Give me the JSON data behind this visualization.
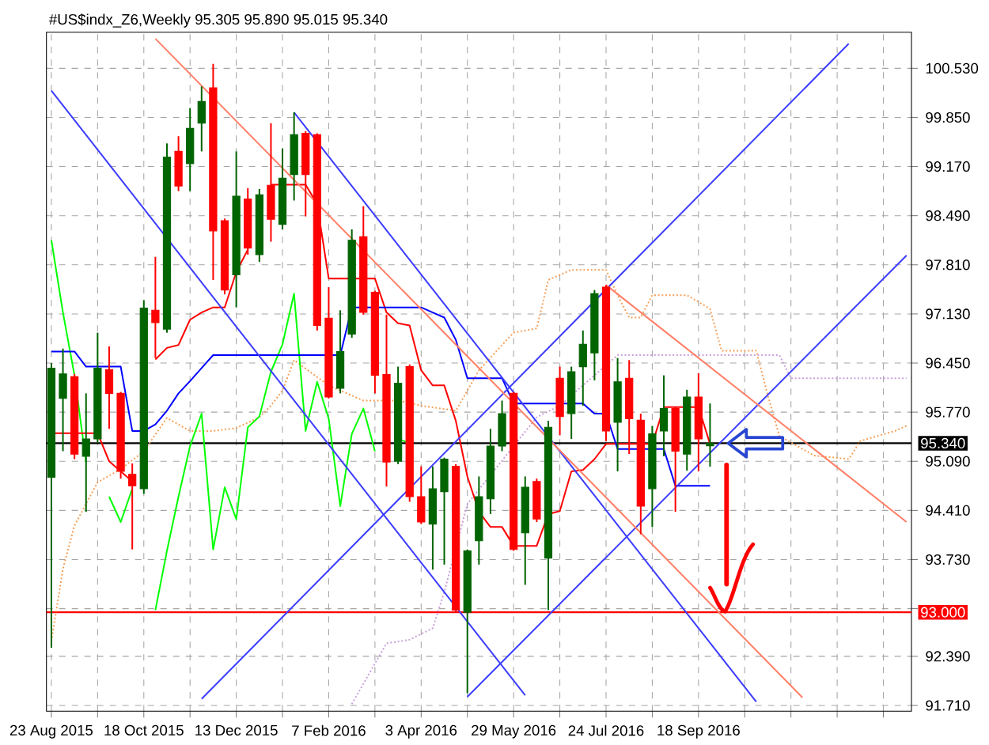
{
  "chart_data": {
    "type": "candlestick",
    "title": "#US$indx_Z6,Weekly  95.305 95.890 95.015 95.340",
    "x": [
      "2015-08-23",
      "2015-08-30",
      "2015-09-06",
      "2015-09-13",
      "2015-09-20",
      "2015-09-27",
      "2015-10-04",
      "2015-10-11",
      "2015-10-18",
      "2015-10-25",
      "2015-11-01",
      "2015-11-08",
      "2015-11-15",
      "2015-11-22",
      "2015-11-29",
      "2015-12-06",
      "2015-12-13",
      "2015-12-20",
      "2015-12-27",
      "2016-01-03",
      "2016-01-10",
      "2016-01-17",
      "2016-01-24",
      "2016-01-31",
      "2016-02-07",
      "2016-02-14",
      "2016-02-21",
      "2016-02-28",
      "2016-03-06",
      "2016-03-13",
      "2016-03-20",
      "2016-03-27",
      "2016-04-03",
      "2016-04-10",
      "2016-04-17",
      "2016-04-24",
      "2016-05-01",
      "2016-05-08",
      "2016-05-15",
      "2016-05-22",
      "2016-05-29",
      "2016-06-05",
      "2016-06-12",
      "2016-06-19",
      "2016-06-26",
      "2016-07-03",
      "2016-07-10",
      "2016-07-17",
      "2016-07-24",
      "2016-07-31",
      "2016-08-07",
      "2016-08-14",
      "2016-08-21",
      "2016-08-28",
      "2016-09-04",
      "2016-09-11",
      "2016-09-18",
      "2016-09-25"
    ],
    "ohlc": [
      [
        94.87,
        96.45,
        92.51,
        96.38
      ],
      [
        95.96,
        96.65,
        95.23,
        96.3
      ],
      [
        96.26,
        96.3,
        95.12,
        95.19
      ],
      [
        95.16,
        96.03,
        94.39,
        95.4
      ],
      [
        95.4,
        96.87,
        95.35,
        96.38
      ],
      [
        96.36,
        96.68,
        95.54,
        96.03
      ],
      [
        96.03,
        96.05,
        94.85,
        94.95
      ],
      [
        94.91,
        95.06,
        93.87,
        94.75
      ],
      [
        94.71,
        97.32,
        94.64,
        97.21
      ],
      [
        97.18,
        97.92,
        96.52,
        97.01
      ],
      [
        96.92,
        99.49,
        96.87,
        99.3
      ],
      [
        99.38,
        99.59,
        98.83,
        98.9
      ],
      [
        99.21,
        99.98,
        98.83,
        99.7
      ],
      [
        99.77,
        100.28,
        99.38,
        100.07
      ],
      [
        100.26,
        100.59,
        97.6,
        98.28
      ],
      [
        98.42,
        98.45,
        97.4,
        97.46
      ],
      [
        97.67,
        99.38,
        97.22,
        98.76
      ],
      [
        98.72,
        98.87,
        97.95,
        98.04
      ],
      [
        97.95,
        98.86,
        97.85,
        98.78
      ],
      [
        98.91,
        99.77,
        98.13,
        98.44
      ],
      [
        98.37,
        99.42,
        98.3,
        99.01
      ],
      [
        99.06,
        99.92,
        98.7,
        99.61
      ],
      [
        99.63,
        99.66,
        98.48,
        99.06
      ],
      [
        99.61,
        99.63,
        96.9,
        96.97
      ],
      [
        97.07,
        97.5,
        95.96,
        95.98
      ],
      [
        96.1,
        97.18,
        96.03,
        96.61
      ],
      [
        96.85,
        98.3,
        96.8,
        98.15
      ],
      [
        98.2,
        98.62,
        97.12,
        97.15
      ],
      [
        97.43,
        97.45,
        96.03,
        96.28
      ],
      [
        96.29,
        97.12,
        94.74,
        95.08
      ],
      [
        95.09,
        96.4,
        95.05,
        96.17
      ],
      [
        96.4,
        96.43,
        94.53,
        94.6
      ],
      [
        94.6,
        95.02,
        94.22,
        94.25
      ],
      [
        94.22,
        95.02,
        93.59,
        94.71
      ],
      [
        94.67,
        95.14,
        93.66,
        95.12
      ],
      [
        95.02,
        95.05,
        93.0,
        93.03
      ],
      [
        93.0,
        93.87,
        91.88,
        93.85
      ],
      [
        93.99,
        94.88,
        93.66,
        94.6
      ],
      [
        94.57,
        95.54,
        94.36,
        95.3
      ],
      [
        95.3,
        95.93,
        95.23,
        95.75
      ],
      [
        96.03,
        96.05,
        93.85,
        93.87
      ],
      [
        94.1,
        94.88,
        93.38,
        94.73
      ],
      [
        94.81,
        94.85,
        94.25,
        94.29
      ],
      [
        93.75,
        95.65,
        93.03,
        95.56
      ],
      [
        96.24,
        96.4,
        95.45,
        95.71
      ],
      [
        95.75,
        96.4,
        95.4,
        96.33
      ],
      [
        96.4,
        96.9,
        95.86,
        96.71
      ],
      [
        96.59,
        97.46,
        96.21,
        97.41
      ],
      [
        97.5,
        97.53,
        95.37,
        95.51
      ],
      [
        95.63,
        96.52,
        94.95,
        96.19
      ],
      [
        96.24,
        96.49,
        95.19,
        95.68
      ],
      [
        95.66,
        95.75,
        94.08,
        94.47
      ],
      [
        94.71,
        95.58,
        94.18,
        95.47
      ],
      [
        95.51,
        96.28,
        95.16,
        95.82
      ],
      [
        95.82,
        95.84,
        94.39,
        95.23
      ],
      [
        95.19,
        96.08,
        94.96,
        95.98
      ],
      [
        95.98,
        96.31,
        94.95,
        95.4
      ],
      [
        95.305,
        95.89,
        95.015,
        95.34
      ]
    ],
    "colors": [
      "#006400",
      "#006400",
      "#ff0000",
      "#006400",
      "#006400",
      "#ff0000",
      "#ff0000",
      "#ff0000",
      "#006400",
      "#ff0000",
      "#006400",
      "#ff0000",
      "#006400",
      "#006400",
      "#ff0000",
      "#ff0000",
      "#006400",
      "#ff0000",
      "#006400",
      "#ff0000",
      "#006400",
      "#006400",
      "#ff0000",
      "#ff0000",
      "#ff0000",
      "#006400",
      "#006400",
      "#ff0000",
      "#ff0000",
      "#ff0000",
      "#006400",
      "#ff0000",
      "#ff0000",
      "#006400",
      "#006400",
      "#ff0000",
      "#006400",
      "#006400",
      "#006400",
      "#006400",
      "#ff0000",
      "#006400",
      "#ff0000",
      "#006400",
      "#ff0000",
      "#006400",
      "#006400",
      "#006400",
      "#ff0000",
      "#006400",
      "#ff0000",
      "#ff0000",
      "#006400",
      "#006400",
      "#ff0000",
      "#006400",
      "#ff0000",
      "#006400"
    ],
    "series": [
      {
        "type": "line",
        "color": "#f5a05a",
        "line_style": "dotted",
        "x": [
          "2015-08-23",
          "2015-08-30",
          "2015-09-06",
          "2015-09-13",
          "2015-09-20",
          "2015-10-04",
          "2015-10-18",
          "2015-11-01",
          "2015-11-15",
          "2015-11-29",
          "2015-12-13",
          "2015-12-27",
          "2016-01-03",
          "2016-01-10",
          "2016-01-17",
          "2016-02-07",
          "2016-02-28",
          "2016-03-20",
          "2016-04-03",
          "2016-04-24",
          "2016-05-08",
          "2016-05-22",
          "2016-05-29",
          "2016-06-12",
          "2016-06-19",
          "2016-07-03",
          "2016-07-24",
          "2016-07-31",
          "2016-08-07",
          "2016-08-14",
          "2016-08-21",
          "2016-09-11",
          "2016-09-25",
          "2016-10-02",
          "2016-10-23",
          "2016-10-30",
          "2016-11-06",
          "2016-11-27",
          "2016-12-18",
          "2016-12-25",
          "2017-01-15",
          "2017-01-22"
        ],
        "values": [
          92.6,
          93.6,
          94.2,
          94.5,
          94.8,
          94.98,
          95.23,
          95.69,
          95.51,
          95.51,
          95.55,
          95.7,
          95.86,
          96.07,
          96.49,
          96.14,
          95.93,
          95.93,
          95.86,
          95.79,
          96.35,
          96.7,
          96.87,
          96.93,
          97.6,
          97.74,
          97.74,
          97.39,
          97.08,
          97.08,
          97.39,
          97.39,
          97.2,
          96.62,
          96.62,
          96.0,
          95.44,
          95.17,
          95.12,
          95.37,
          95.51,
          95.58
        ]
      },
      {
        "type": "line",
        "color": "#c9a0dc",
        "line_style": "dotted",
        "x": [
          "2016-02-21",
          "2016-03-13",
          "2016-03-27",
          "2016-04-10",
          "2016-04-17",
          "2016-05-01",
          "2016-06-12",
          "2016-06-26",
          "2016-07-31",
          "2016-11-06",
          "2016-11-13",
          "2017-01-22"
        ],
        "values": [
          91.73,
          92.57,
          92.62,
          92.78,
          93.28,
          94.5,
          95.7,
          95.86,
          96.56,
          96.56,
          96.24,
          96.24
        ]
      },
      {
        "type": "line",
        "color": "#00ff00",
        "values": [
          98.15,
          97.15,
          96.28,
          95.08,
          null,
          94.6,
          94.25,
          94.71,
          null,
          93.03,
          93.85,
          94.6,
          95.3,
          95.75,
          93.87,
          94.73,
          94.29,
          95.56,
          95.71,
          96.33,
          96.71,
          97.41,
          95.51,
          96.19,
          95.68,
          94.47,
          95.47,
          95.82,
          95.23,
          null,
          95.4,
          95.34,
          null,
          null,
          null,
          null,
          null,
          null,
          null,
          null,
          null,
          null,
          null,
          null,
          null,
          null,
          null,
          null,
          null,
          null,
          null,
          null,
          null,
          null,
          null,
          null,
          null,
          null
        ]
      },
      {
        "type": "line",
        "color": "#ff0000",
        "values": [
          95.48,
          95.48,
          95.48,
          95.48,
          95.48,
          95.09,
          94.95,
          94.81,
          null,
          96.5,
          96.66,
          96.7,
          97.05,
          97.15,
          97.22,
          97.22,
          97.71,
          98.02,
          null,
          98.92,
          98.92,
          98.92,
          98.92,
          98.65,
          97.62,
          97.62,
          97.62,
          97.62,
          97.62,
          97.15,
          97.0,
          96.97,
          96.35,
          96.14,
          96.14,
          95.65,
          94.88,
          94.39,
          94.18,
          94.18,
          93.92,
          93.92,
          93.92,
          94.36,
          94.4,
          94.95,
          94.97,
          95.12,
          95.33,
          95.33,
          95.33,
          95.33,
          95.33,
          95.84,
          95.84,
          95.84,
          95.84,
          95.33
        ]
      },
      {
        "type": "line",
        "color": "#0000ff",
        "values": [
          96.61,
          96.61,
          96.61,
          96.4,
          96.4,
          96.4,
          96.4,
          95.51,
          95.51,
          95.6,
          95.79,
          96.03,
          96.2,
          96.38,
          96.56,
          96.56,
          96.56,
          96.56,
          96.56,
          96.56,
          96.56,
          96.56,
          96.56,
          96.56,
          96.56,
          96.56,
          97.22,
          97.22,
          97.22,
          97.22,
          97.22,
          97.22,
          97.22,
          97.15,
          97.08,
          96.77,
          96.24,
          96.24,
          96.24,
          96.24,
          95.89,
          95.89,
          95.89,
          95.89,
          95.89,
          95.89,
          95.89,
          95.75,
          95.75,
          95.26,
          95.26,
          95.26,
          95.26,
          95.26,
          94.75,
          94.75,
          94.75,
          94.75
        ]
      },
      {
        "type": "line",
        "color": "#3c3cff",
        "x": [
          "2015-08-23",
          "2016-06-05"
        ],
        "values": [
          100.22,
          91.85
        ]
      },
      {
        "type": "line",
        "color": "#3c3cff",
        "x": [
          "2016-01-17",
          "2016-10-23"
        ],
        "values": [
          99.92,
          91.76
        ]
      },
      {
        "type": "line",
        "color": "#3c3cff",
        "x": [
          "2015-11-22",
          "2016-12-18"
        ],
        "values": [
          91.8,
          100.87
        ]
      },
      {
        "type": "line",
        "color": "#3c3cff",
        "x": [
          "2016-05-01",
          "2017-01-22"
        ],
        "values": [
          91.83,
          97.94
        ]
      },
      {
        "type": "line",
        "color": "#ff7f66",
        "x": [
          "2015-10-25",
          "2016-11-20"
        ],
        "values": [
          100.94,
          91.82
        ]
      },
      {
        "type": "line",
        "color": "#ff7f66",
        "x": [
          "2016-07-24",
          "2017-01-22"
        ],
        "values": [
          97.53,
          94.25
        ]
      }
    ],
    "xlim": [
      "2015-08-20",
      "2017-01-25"
    ],
    "ylim": [
      91.63,
      101.03
    ],
    "xticks": [
      {
        "value": "2015-08-23",
        "label": "23 Aug 2015"
      },
      {
        "value": "2015-09-20",
        "label": null
      },
      {
        "value": "2015-10-18",
        "label": "18 Oct 2015"
      },
      {
        "value": "2015-11-15",
        "label": null
      },
      {
        "value": "2015-12-13",
        "label": "13 Dec 2015"
      },
      {
        "value": "2016-01-10",
        "label": null
      },
      {
        "value": "2016-02-07",
        "label": "7 Feb 2016"
      },
      {
        "value": "2016-03-06",
        "label": null
      },
      {
        "value": "2016-04-03",
        "label": "3 Apr 2016"
      },
      {
        "value": "2016-05-01",
        "label": null
      },
      {
        "value": "2016-05-29",
        "label": "29 May 2016"
      },
      {
        "value": "2016-06-26",
        "label": null
      },
      {
        "value": "2016-07-24",
        "label": "24 Jul 2016"
      },
      {
        "value": "2016-08-21",
        "label": null
      },
      {
        "value": "2016-09-18",
        "label": "18 Sep 2016"
      },
      {
        "value": "2016-10-16",
        "label": null
      },
      {
        "value": "2016-11-13",
        "label": null
      },
      {
        "value": "2016-12-11",
        "label": null
      },
      {
        "value": "2017-01-08",
        "label": null
      }
    ],
    "yticks": [
      {
        "value": 100.53,
        "label": "100.530"
      },
      {
        "value": 99.85,
        "label": "99.850"
      },
      {
        "value": 99.17,
        "label": "99.170"
      },
      {
        "value": 98.49,
        "label": "98.490"
      },
      {
        "value": 97.81,
        "label": "97.810"
      },
      {
        "value": 97.13,
        "label": "97.130"
      },
      {
        "value": 96.45,
        "label": "96.450"
      },
      {
        "value": 95.77,
        "label": "95.770"
      },
      {
        "value": 95.09,
        "label": "95.090"
      },
      {
        "value": 94.41,
        "label": "94.410"
      },
      {
        "value": 93.73,
        "label": "93.730"
      },
      {
        "value": 93.05,
        "label": null
      },
      {
        "value": 92.39,
        "label": "92.390"
      },
      {
        "value": 91.71,
        "label": "91.710"
      }
    ],
    "grid": true,
    "ref_lines": [
      {
        "axis": "y",
        "value": 93.0,
        "label": "93.000",
        "color": "#ff0000"
      },
      {
        "axis": "y",
        "value": 95.34,
        "label": "95.340",
        "color": "#000000"
      }
    ]
  }
}
